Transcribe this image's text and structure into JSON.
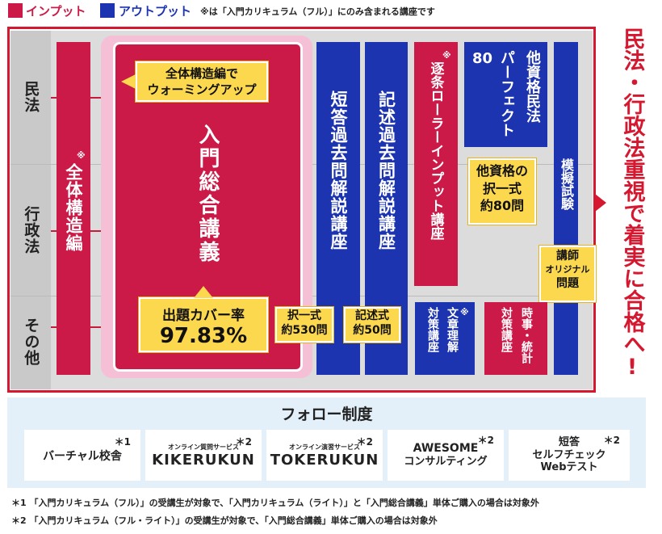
{
  "legend": {
    "input_label": "インプット",
    "output_label": "アウトプット",
    "note": "※は「入門カリキュラム（フル）」にのみ含まれる講座です",
    "input_color": "#cc1a48",
    "output_color": "#1c34b0"
  },
  "rows": {
    "civil": "民法",
    "admin": "行政法",
    "other": "その他"
  },
  "columns": {
    "zentai": {
      "mark": "※",
      "label": "全体構造編"
    },
    "nyumon": {
      "label": "入門総合講義",
      "callout_top": [
        "全体構造編で",
        "ウォーミングアップ"
      ],
      "callout_bottom": [
        "出題カバー率",
        "97.83%"
      ]
    },
    "tanto": {
      "label": "短答過去問解説講座",
      "callout": [
        "択一式",
        "約530問"
      ]
    },
    "kijutsu": {
      "label": "記述過去問解説講座",
      "callout": [
        "記述式",
        "約50問"
      ]
    },
    "chikujo": {
      "mark": "※",
      "label": "逐条ローラーインプット講座"
    },
    "pafekuto": {
      "label_num": "80",
      "label_a": "パーフェクト",
      "label_b": "他資格民法",
      "callout": [
        "他資格の",
        "択一式",
        "約80問"
      ]
    },
    "moshi": {
      "label": "模擬試験",
      "callout": [
        "講師",
        "オリジナル",
        "問題"
      ]
    },
    "bunsho": {
      "mark": "※",
      "label_a": "文章理解",
      "label_b": "対策講座"
    },
    "jiji": {
      "label_a": "時事・統計",
      "label_b": "対策講座"
    }
  },
  "slogan": "民法・行政法重視で着実に合格へ!",
  "follow": {
    "title": "フォロー制度",
    "items": [
      {
        "label": "バーチャル校舎",
        "mark": "＊1"
      },
      {
        "sub": "オンライン質問サービス",
        "label": "KIKERUKUN",
        "mark": "＊2"
      },
      {
        "sub": "オンライン演習サービス",
        "label": "TOKERUKUN",
        "mark": "＊2"
      },
      {
        "label": "AWESOME",
        "label2": "コンサルティング",
        "mark": "＊2"
      },
      {
        "label": "短答",
        "label2": "セルフチェック",
        "label3": "Webテスト",
        "mark": "＊2"
      }
    ]
  },
  "footnotes": [
    "＊1 「入門カリキュラム（フル）」の受講生が対象で、「入門カリキュラム（ライト）」と「入門総合講義」単体ご購入の場合は対象外",
    "＊2 「入門カリキュラム（フル・ライト）」の受講生が対象で、「入門総合講義」単体ご購入の場合は対象外"
  ]
}
